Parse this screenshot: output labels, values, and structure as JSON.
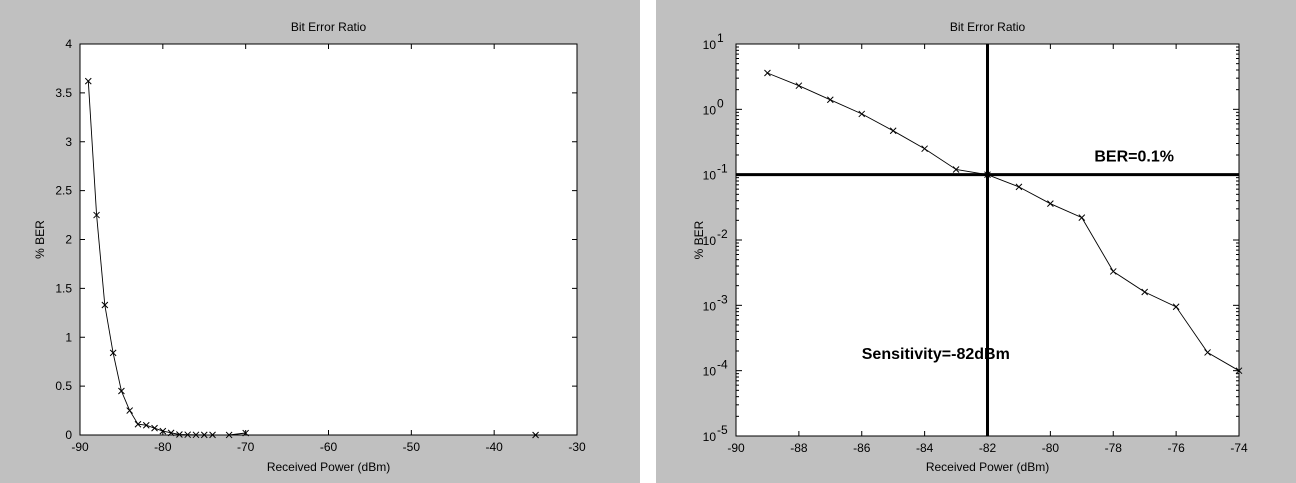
{
  "chart_data": [
    {
      "id": "left",
      "type": "line",
      "title": "Bit Error Ratio",
      "xlabel": "Received Power (dBm)",
      "ylabel": "% BER",
      "xlim": [
        -90,
        -30
      ],
      "ylim": [
        0,
        4
      ],
      "yscale": "linear",
      "xticks": [
        -90,
        -80,
        -70,
        -60,
        -50,
        -40,
        -30
      ],
      "yticks": [
        0,
        0.5,
        1,
        1.5,
        2,
        2.5,
        3,
        3.5,
        4
      ],
      "grid": false,
      "series": [
        {
          "marker": "x",
          "x": [
            -89,
            -88,
            -87,
            -86,
            -85,
            -84,
            -83,
            -82,
            -81,
            -80,
            -79,
            -78,
            -77,
            -76,
            -75,
            -74,
            -72,
            -70,
            -35
          ],
          "y": [
            3.62,
            2.25,
            1.33,
            0.84,
            0.45,
            0.25,
            0.11,
            0.1,
            0.07,
            0.04,
            0.022,
            0.005,
            0.003,
            0.002,
            0.001,
            0.001,
            0.0005,
            0.02,
            0.0
          ]
        }
      ]
    },
    {
      "id": "right",
      "type": "line",
      "title": "Bit Error Ratio",
      "xlabel": "Received Power (dBm)",
      "ylabel": "% BER",
      "xlim": [
        -90,
        -74
      ],
      "ylim": [
        1e-05,
        10
      ],
      "yscale": "log",
      "xticks": [
        -90,
        -88,
        -86,
        -84,
        -82,
        -80,
        -78,
        -76,
        -74
      ],
      "yticks": [
        {
          "value": 1e-05,
          "base": "10",
          "exp": "-5"
        },
        {
          "value": 0.0001,
          "base": "10",
          "exp": "-4"
        },
        {
          "value": 0.001,
          "base": "10",
          "exp": "-3"
        },
        {
          "value": 0.01,
          "base": "10",
          "exp": "-2"
        },
        {
          "value": 0.1,
          "base": "10",
          "exp": "-1"
        },
        {
          "value": 1,
          "base": "10",
          "exp": "0"
        },
        {
          "value": 10,
          "base": "10",
          "exp": "1"
        }
      ],
      "grid": false,
      "series": [
        {
          "marker": "x",
          "x": [
            -89,
            -88,
            -87,
            -86,
            -85,
            -84,
            -83,
            -82,
            -81,
            -80,
            -79,
            -78,
            -77,
            -76,
            -75,
            -74
          ],
          "y": [
            3.6,
            2.3,
            1.4,
            0.85,
            0.47,
            0.25,
            0.12,
            0.1,
            0.065,
            0.036,
            0.022,
            0.0033,
            0.0016,
            0.00095,
            0.00019,
            0.0001
          ]
        }
      ],
      "reference_lines": [
        {
          "orientation": "horizontal",
          "value": 0.1
        },
        {
          "orientation": "vertical",
          "value": -82
        }
      ],
      "annotations": [
        {
          "text": "BER=0.1%",
          "x": -78.6,
          "y": 0.16
        },
        {
          "text": "Sensitivity=-82dBm",
          "x": -86,
          "y": 0.00015
        }
      ]
    }
  ]
}
